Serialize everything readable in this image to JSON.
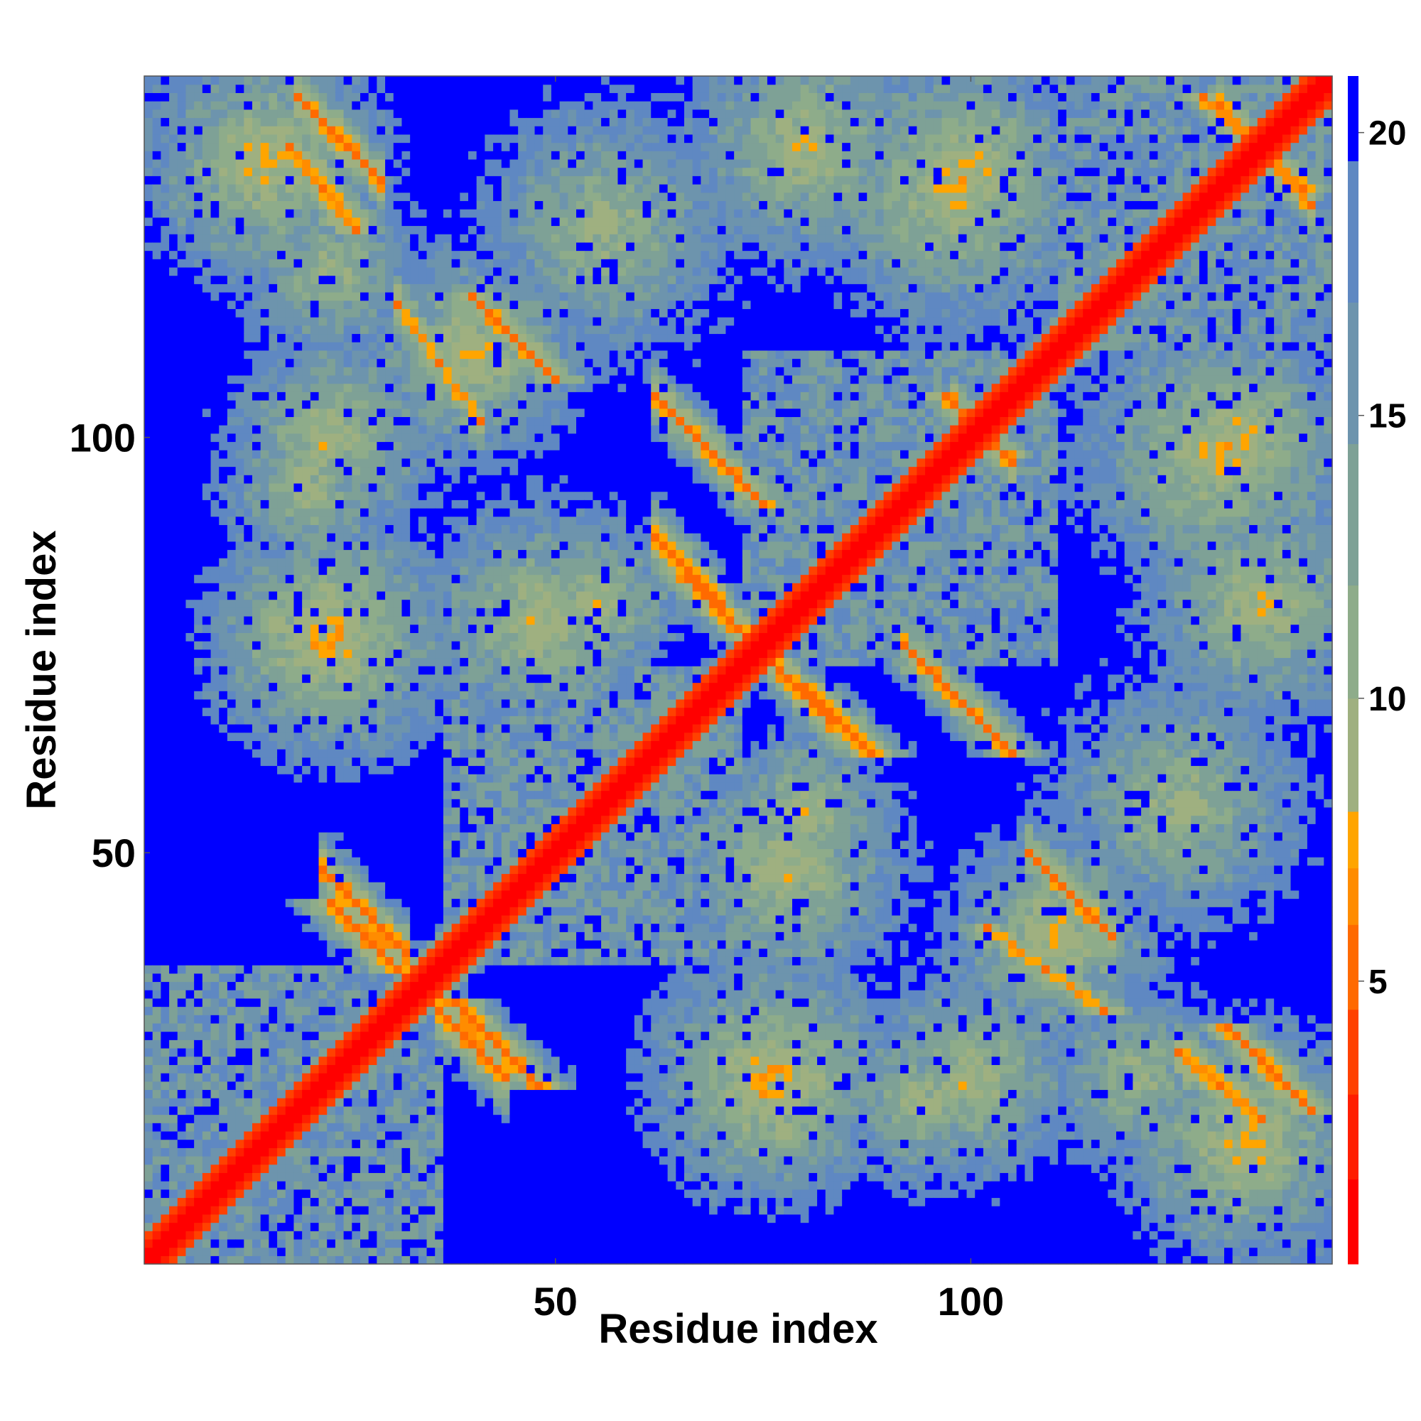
{
  "chart_data": {
    "type": "heatmap",
    "title": "",
    "xlabel": "Residue index",
    "ylabel": "Residue index",
    "n_residues": 143,
    "xlim": [
      0.5,
      143.5
    ],
    "ylim": [
      0.5,
      143.5
    ],
    "x_ticks": [
      50,
      100
    ],
    "y_ticks": [
      50,
      100
    ],
    "colorbar": {
      "range": [
        0,
        21
      ],
      "ticks": [
        5,
        10,
        15,
        20
      ],
      "bins": [
        {
          "max": 1.5,
          "color": "#ff0000"
        },
        {
          "max": 3.0,
          "color": "#ff1e00"
        },
        {
          "max": 4.5,
          "color": "#ff4100"
        },
        {
          "max": 6.0,
          "color": "#ff6a00"
        },
        {
          "max": 7.0,
          "color": "#ff8c00"
        },
        {
          "max": 8.0,
          "color": "#ffa500"
        },
        {
          "max": 10.0,
          "color": "#9fb080"
        },
        {
          "max": 12.0,
          "color": "#8eac8a"
        },
        {
          "max": 14.5,
          "color": "#7ea196"
        },
        {
          "max": 17.0,
          "color": "#6d94ad"
        },
        {
          "max": 19.5,
          "color": "#5f88c2"
        },
        {
          "max": 21.0,
          "color": "#0000ff"
        }
      ]
    },
    "cutoff_color": "#0000ff",
    "domains": [
      [
        1,
        36
      ],
      [
        37,
        72
      ],
      [
        73,
        110
      ],
      [
        111,
        143
      ]
    ],
    "contact_segments": [
      {
        "a": [
          19,
          29
        ],
        "b": [
          131,
          141
        ],
        "orientation": "anti",
        "distance": 5.5
      },
      {
        "a": [
          31,
          41
        ],
        "b": [
          102,
          116
        ],
        "orientation": "anti",
        "distance": 6.0
      },
      {
        "a": [
          62,
          72
        ],
        "b": [
          95,
          105
        ],
        "orientation": "anti",
        "distance": 6.0
      },
      {
        "a": [
          62,
          70
        ],
        "b": [
          80,
          88
        ],
        "orientation": "anti",
        "distance": 5.0
      },
      {
        "a": [
          75,
          83
        ],
        "b": [
          66,
          74
        ],
        "orientation": "anti",
        "distance": 5.5
      },
      {
        "a": [
          92,
          100
        ],
        "b": [
          67,
          75
        ],
        "orientation": "anti",
        "distance": 6.0
      },
      {
        "a": [
          22,
          32
        ],
        "b": [
          38,
          48
        ],
        "orientation": "anti",
        "distance": 5.5
      },
      {
        "a": [
          36,
          44
        ],
        "b": [
          23,
          31
        ],
        "orientation": "anti",
        "distance": 5.5
      },
      {
        "a": [
          107,
          117
        ],
        "b": [
          40,
          50
        ],
        "orientation": "anti",
        "distance": 6.0
      },
      {
        "a": [
          125,
          135
        ],
        "b": [
          18,
          26
        ],
        "orientation": "anti",
        "distance": 5.5
      },
      {
        "a": [
          130,
          141
        ],
        "b": [
          128,
          140
        ],
        "orientation": "anti",
        "distance": 6.0
      },
      {
        "a": [
          98,
          105
        ],
        "b": [
          97,
          104
        ],
        "orientation": "anti",
        "distance": 6.0
      }
    ],
    "contact_clusters": [
      {
        "center": [
          21,
          76
        ],
        "radius": 7,
        "distance": 7.5
      },
      {
        "center": [
          20,
          94
        ],
        "radius": 6,
        "distance": 9.0
      },
      {
        "center": [
          15,
          133
        ],
        "radius": 8,
        "distance": 8.0
      },
      {
        "center": [
          76,
          23
        ],
        "radius": 8,
        "distance": 7.5
      },
      {
        "center": [
          100,
          23
        ],
        "radius": 7,
        "distance": 8.5
      },
      {
        "center": [
          120,
          23
        ],
        "radius": 6,
        "distance": 9.0
      },
      {
        "center": [
          98,
          130
        ],
        "radius": 9,
        "distance": 8.0
      },
      {
        "center": [
          40,
          110
        ],
        "radius": 7,
        "distance": 8.0
      },
      {
        "center": [
          48,
          78
        ],
        "radius": 8,
        "distance": 8.5
      },
      {
        "center": [
          133,
          100
        ],
        "radius": 7,
        "distance": 8.0
      },
      {
        "center": [
          135,
          80
        ],
        "radius": 8,
        "distance": 8.5
      },
      {
        "center": [
          80,
          55
        ],
        "radius": 6,
        "distance": 9.0
      },
      {
        "center": [
          56,
          125
        ],
        "radius": 9,
        "distance": 9.5
      },
      {
        "center": [
          95,
          130
        ],
        "radius": 8,
        "distance": 9.5
      }
    ]
  },
  "axes": {
    "x_tick_labels": [
      "50",
      "100"
    ],
    "y_tick_labels": [
      "50",
      "100"
    ],
    "colorbar_tick_labels": [
      "5",
      "10",
      "15",
      "20"
    ]
  }
}
